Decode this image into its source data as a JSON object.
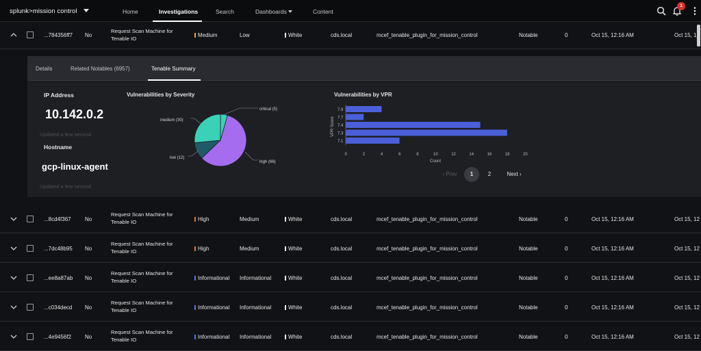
{
  "app": {
    "brand": "splunk>mission control"
  },
  "nav": [
    {
      "label": "Home",
      "active": false
    },
    {
      "label": "Investigations",
      "active": true
    },
    {
      "label": "Search",
      "active": false
    },
    {
      "label": "Dashboards",
      "active": false,
      "dropdown": true
    },
    {
      "label": "Content",
      "active": false
    }
  ],
  "notifications": {
    "count": "1"
  },
  "expanded_row": {
    "id": "...784356ff7",
    "no": "No",
    "name": "Request Scan Machine for Tenable IO",
    "severity": "Medium",
    "urgency": "Low",
    "tlp": "White",
    "domain": "cds.local",
    "source": "mcef_tenable_plugin_for_mission_control",
    "type": "Notable",
    "count": "0",
    "created": "Oct 15, 12:16 AM",
    "updated": "Oct 15, 12"
  },
  "detail": {
    "tabs": [
      "Details",
      "Related Notables (6957)",
      "Tenable Summary"
    ],
    "active_tab": "Tenable Summary",
    "ip_label": "IP Address",
    "ip_value": "10.142.0.2",
    "ip_updated": "Updated a few second.",
    "host_label": "Hostname",
    "host_value": "gcp-linux-agent",
    "host_updated": "Updated a few second."
  },
  "chart_data": [
    {
      "type": "pie",
      "title": "Vulnerabilities by Severity",
      "slices": [
        {
          "label": "critical (5)",
          "value": 5,
          "color": "#3ad1b8"
        },
        {
          "label": "high (66)",
          "value": 66,
          "color": "#a66cf0"
        },
        {
          "label": "low (12)",
          "value": 12,
          "color": "#1f5a66"
        },
        {
          "label": "medium (30)",
          "value": 30,
          "color": "#3ad1b8"
        }
      ]
    },
    {
      "type": "bar",
      "orientation": "horizontal",
      "title": "Vulnerabilities by VPR",
      "xlabel": "Count",
      "ylabel": "VPR Score",
      "categories": [
        "7.9",
        "7.7",
        "7.4",
        "7.3",
        "7.1"
      ],
      "values": [
        4,
        2,
        15,
        18,
        6
      ],
      "xlim": [
        0,
        20
      ],
      "xticks": [
        "0",
        "2",
        "4",
        "6",
        "8",
        "10",
        "12",
        "14",
        "16",
        "18",
        "20"
      ],
      "color": "#4a5fd8"
    }
  ],
  "pagination": {
    "prev": "Prev",
    "pages": [
      "1",
      "2"
    ],
    "current": "1",
    "next": "Next"
  },
  "rows": [
    {
      "id": "...8cd4f367",
      "no": "No",
      "name": "Request Scan Machine for Tenable IO",
      "severity": "High",
      "urgency": "Medium",
      "tlp": "White",
      "domain": "cds.local",
      "source": "mcef_tenable_plugin_for_mission_control",
      "type": "Notable",
      "count": "0",
      "created": "Oct 15, 12:16 AM",
      "updated": "Oct 15, 12"
    },
    {
      "id": "...7dc48b95",
      "no": "No",
      "name": "Request Scan Machine for Tenable IO",
      "severity": "High",
      "urgency": "Medium",
      "tlp": "White",
      "domain": "cds.local",
      "source": "mcef_tenable_plugin_for_mission_control",
      "type": "Notable",
      "count": "0",
      "created": "Oct 15, 12:16 AM",
      "updated": "Oct 15, 12"
    },
    {
      "id": "...ee8a87ab",
      "no": "No",
      "name": "Request Scan Machine for Tenable IO",
      "severity": "Informational",
      "urgency": "Informational",
      "tlp": "White",
      "domain": "cds.local",
      "source": "mcef_tenable_plugin_for_mission_control",
      "type": "Notable",
      "count": "0",
      "created": "Oct 15, 12:16 AM",
      "updated": "Oct 15, 12"
    },
    {
      "id": "...c034decd",
      "no": "No",
      "name": "Request Scan Machine for Tenable IO",
      "severity": "Informational",
      "urgency": "Informational",
      "tlp": "White",
      "domain": "cds.local",
      "source": "mcef_tenable_plugin_for_mission_control",
      "type": "Notable",
      "count": "0",
      "created": "Oct 15, 12:16 AM",
      "updated": "Oct 15, 12"
    },
    {
      "id": "...4e9456f2",
      "no": "No",
      "name": "Request Scan Machine for Tenable IO",
      "severity": "Informational",
      "urgency": "Informational",
      "tlp": "White",
      "domain": "cds.local",
      "source": "mcef_tenable_plugin_for_mission_control",
      "type": "Notable",
      "count": "0",
      "created": "Oct 15, 12:16 AM",
      "updated": "Oct 15, 12"
    }
  ],
  "colors": {
    "high": "#e8743b",
    "medium": "#e8a23b",
    "informational": "#4a7cf0",
    "white_tlp": "#f3f3f3",
    "accent": "#ffffff"
  },
  "icons": [
    "chevron-up-icon",
    "chevron-down-icon",
    "search-icon",
    "bell-icon",
    "kebab-menu-icon",
    "chevron-left-icon",
    "chevron-right-icon"
  ]
}
